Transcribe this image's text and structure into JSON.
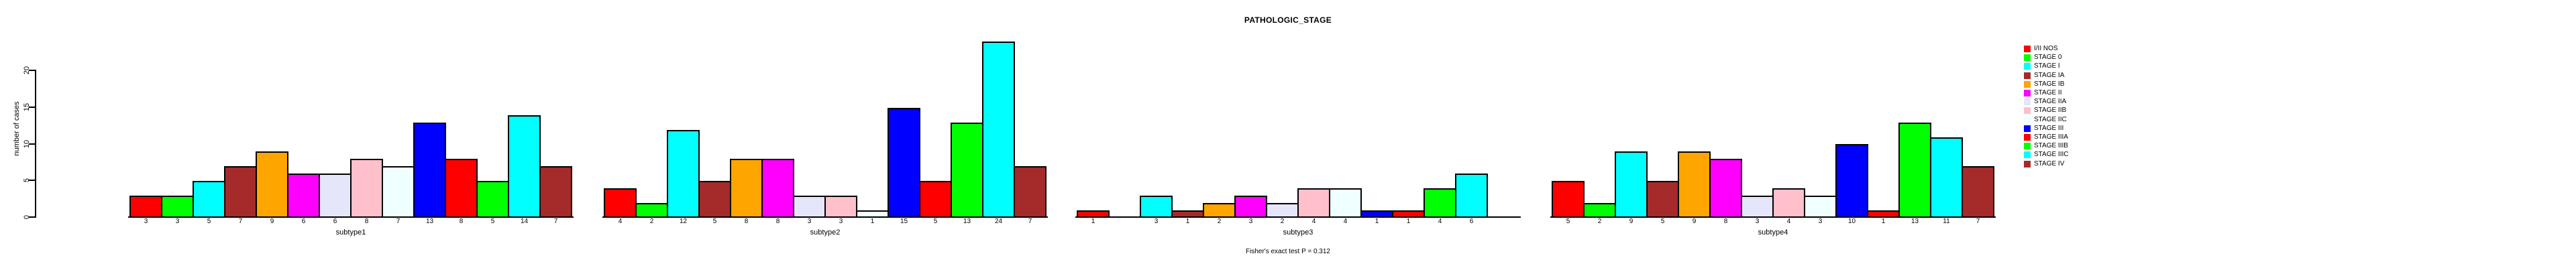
{
  "title": "PATHOLOGIC_STAGE",
  "chart_data": {
    "type": "bar",
    "title": "PATHOLOGIC_STAGE",
    "ylabel": "number of cases",
    "xlabel_per_panel": [
      "subtype1",
      "subtype2",
      "subtype3",
      "subtype4"
    ],
    "yticks": [
      "0",
      "5",
      "10",
      "15",
      "20"
    ],
    "ytick_values": [
      0,
      5,
      10,
      15,
      20
    ],
    "ylim": [
      0,
      24
    ],
    "grid": "off",
    "legend_position": "right",
    "categories": [
      "I/II NOS",
      "STAGE 0",
      "STAGE I",
      "STAGE IA",
      "STAGE IB",
      "STAGE II",
      "STAGE IIA",
      "STAGE IIB",
      "STAGE IIC",
      "STAGE III",
      "STAGE IIIA",
      "STAGE IIIB",
      "STAGE IIIC",
      "STAGE IV"
    ],
    "colors": [
      "#FF0000",
      "#00FF00",
      "#00FFFF",
      "#A52A2A",
      "#FFA500",
      "#FF00FF",
      "#E6E6FA",
      "#FFC0CB",
      "#F0FFFF",
      "#0000FF",
      "#FF0000",
      "#00FF00",
      "#00FFFF",
      "#A52A2A"
    ],
    "series": [
      {
        "name": "subtype1",
        "values": [
          3,
          3,
          5,
          7,
          9,
          6,
          6,
          8,
          7,
          13,
          8,
          5,
          14,
          7
        ]
      },
      {
        "name": "subtype2",
        "values": [
          4,
          2,
          12,
          5,
          8,
          8,
          3,
          3,
          1,
          15,
          5,
          13,
          24,
          7
        ]
      },
      {
        "name": "subtype3",
        "values": [
          1,
          0,
          3,
          1,
          2,
          3,
          2,
          4,
          4,
          1,
          1,
          4,
          6,
          0
        ]
      },
      {
        "name": "subtype4",
        "values": [
          5,
          2,
          9,
          5,
          9,
          8,
          3,
          4,
          3,
          10,
          1,
          13,
          11,
          7
        ]
      }
    ],
    "bar_value_labels_shown": true,
    "zero_value_bars_hidden": true,
    "caption": "Fisher's exact test P = 0.312"
  }
}
